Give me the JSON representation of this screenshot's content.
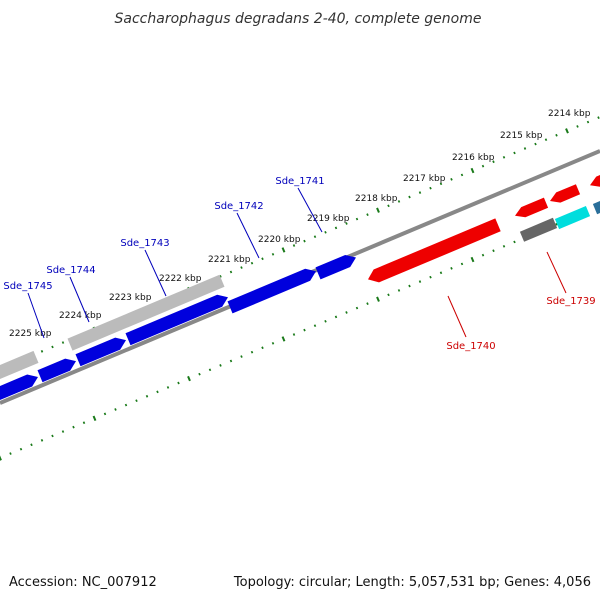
{
  "title": "Saccharophagus degradans 2-40, complete genome",
  "accession": "Accession: NC_007912",
  "summary": "Topology: circular; Length: 5,057,531 bp; Genes: 4,056",
  "colors": {
    "forward": "#0000dd",
    "reverse": "#ee0000",
    "forward_label": "#0000bb",
    "reverse_label": "#cc0000",
    "other": "#bbbbbb",
    "other_dark": "#666666",
    "cyan": "#00dddd",
    "teal": "#2a6f9a",
    "backbone": "#888888",
    "ticks": "#1a7a1a"
  },
  "ticks": [
    {
      "label": "2214 kbp"
    },
    {
      "label": "2215 kbp"
    },
    {
      "label": "2216 kbp"
    },
    {
      "label": "2217 kbp"
    },
    {
      "label": "2218 kbp"
    },
    {
      "label": "2219 kbp"
    },
    {
      "label": "2220 kbp"
    },
    {
      "label": "2221 kbp"
    },
    {
      "label": "2222 kbp"
    },
    {
      "label": "2223 kbp"
    },
    {
      "label": "2224 kbp"
    },
    {
      "label": "2225 kbp"
    }
  ],
  "genes": [
    {
      "label": "Sde_1741",
      "strand": "forward"
    },
    {
      "label": "Sde_1742",
      "strand": "forward"
    },
    {
      "label": "Sde_1743",
      "strand": "forward"
    },
    {
      "label": "Sde_1744",
      "strand": "forward"
    },
    {
      "label": "Sde_1745",
      "strand": "forward"
    },
    {
      "label": "Sde_1740",
      "strand": "reverse"
    },
    {
      "label": "Sde_1739",
      "strand": "reverse"
    }
  ]
}
